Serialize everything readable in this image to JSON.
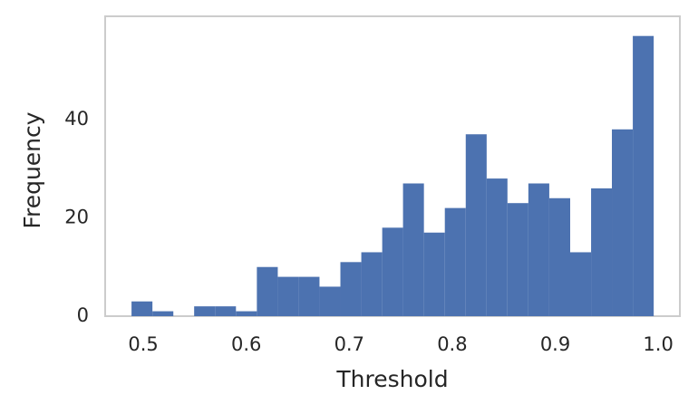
{
  "chart_data": {
    "type": "histogram",
    "x_label": "Threshold",
    "y_label": "Frequency",
    "bins": [
      0.4886,
      0.5089,
      0.5292,
      0.5494,
      0.5697,
      0.59,
      0.6103,
      0.6306,
      0.6508,
      0.6711,
      0.6914,
      0.7117,
      0.732,
      0.7522,
      0.7725,
      0.7928,
      0.8131,
      0.8334,
      0.8536,
      0.8739,
      0.8942,
      0.9145,
      0.9348,
      0.955,
      0.9753,
      0.9956
    ],
    "counts": [
      3,
      1,
      0,
      2,
      2,
      1,
      10,
      8,
      8,
      6,
      11,
      13,
      18,
      27,
      17,
      22,
      37,
      28,
      23,
      27,
      24,
      13,
      26,
      38,
      57
    ],
    "color": "#4c72b0",
    "xlim": [
      0.463,
      1.021
    ],
    "xticks": [
      0.5,
      0.6,
      0.7,
      0.8,
      0.9,
      {
        "value": 1,
        "label": "1.0"
      }
    ],
    "ylim": [
      0,
      61
    ],
    "yticks": [
      0,
      20,
      40
    ],
    "grid": false
  }
}
